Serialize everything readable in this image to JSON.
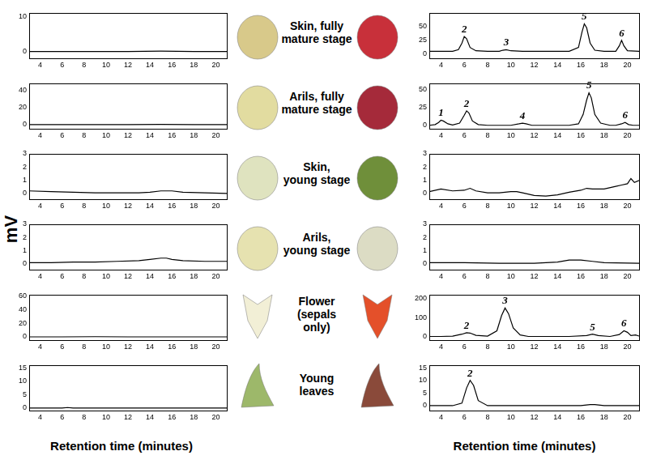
{
  "ylabel": "mV",
  "row_labels": [
    [
      "Skin, fully",
      "mature stage"
    ],
    [
      "Arils, fully",
      "mature stage"
    ],
    [
      "Skin,",
      "young stage"
    ],
    [
      "Arils,",
      "young stage"
    ],
    [
      "Flower",
      "(sepals",
      "only)"
    ],
    [
      "Young",
      "leaves"
    ]
  ],
  "chart_data": [
    {
      "type": "line",
      "color": "#000000",
      "xlim": [
        3,
        21
      ],
      "xticks": [
        4,
        6,
        8,
        10,
        12,
        14,
        16,
        18,
        20
      ],
      "ylim": [
        -2,
        11
      ],
      "yticks": [
        0,
        10
      ],
      "x": [
        3,
        6,
        9,
        12,
        15,
        18,
        21
      ],
      "values": [
        0,
        0,
        0,
        0,
        0.1,
        0,
        0
      ]
    },
    {
      "type": "line",
      "color": "#000000",
      "xlim": [
        3,
        21
      ],
      "xticks": [
        4,
        6,
        8,
        10,
        12,
        14,
        16,
        18,
        20
      ],
      "ylim": [
        -8,
        75
      ],
      "yticks": [
        0,
        25,
        50
      ],
      "x": [
        3,
        4,
        5,
        5.5,
        5.8,
        6.0,
        6.2,
        6.5,
        7,
        8,
        9,
        9.3,
        9.6,
        10,
        11,
        12,
        13,
        14,
        15,
        15.8,
        16.1,
        16.3,
        16.5,
        16.8,
        17.2,
        18,
        19,
        19.3,
        19.5,
        19.7,
        20,
        21
      ],
      "values": [
        5,
        5,
        5,
        8,
        20,
        32,
        28,
        12,
        6,
        5,
        5,
        7,
        8,
        6,
        5,
        5,
        5,
        5,
        5,
        12,
        40,
        55,
        48,
        20,
        7,
        5,
        5,
        15,
        25,
        15,
        6,
        5
      ],
      "annotations": [
        {
          "text": "2",
          "x": 6.0
        },
        {
          "text": "3",
          "x": 9.6
        },
        {
          "text": "5",
          "x": 16.3
        },
        {
          "text": "6",
          "x": 19.5
        }
      ]
    },
    {
      "type": "line",
      "color": "#000000",
      "xlim": [
        3,
        21
      ],
      "xticks": [
        4,
        6,
        8,
        10,
        12,
        14,
        16,
        18,
        20
      ],
      "ylim": [
        -5,
        48
      ],
      "yticks": [
        0,
        20,
        40
      ],
      "x": [
        3,
        6,
        9,
        12,
        15,
        18,
        21
      ],
      "values": [
        0,
        0,
        0,
        0,
        0.2,
        0,
        0
      ]
    },
    {
      "type": "line",
      "color": "#000000",
      "xlim": [
        3,
        21
      ],
      "xticks": [
        4,
        6,
        8,
        10,
        12,
        14,
        16,
        18,
        20
      ],
      "ylim": [
        -5,
        58
      ],
      "yticks": [
        0,
        25,
        50
      ],
      "x": [
        3,
        3.5,
        3.8,
        4,
        4.2,
        4.6,
        5,
        5.6,
        6,
        6.2,
        6.4,
        6.7,
        7.2,
        8,
        9,
        10,
        10.7,
        11,
        11.3,
        11.8,
        13,
        14,
        15,
        15.8,
        16.2,
        16.5,
        16.7,
        16.9,
        17.2,
        17.7,
        18.5,
        19,
        19.5,
        19.8,
        20.1,
        20.5,
        21
      ],
      "values": [
        0,
        1,
        4,
        7,
        6,
        2,
        0.5,
        3,
        14,
        20,
        17,
        6,
        1,
        0,
        0,
        0,
        2,
        3,
        2,
        0,
        0,
        0,
        0,
        2,
        15,
        35,
        45,
        38,
        15,
        3,
        0,
        0,
        2,
        4,
        1,
        0,
        0
      ],
      "annotations": [
        {
          "text": "1",
          "x": 4
        },
        {
          "text": "2",
          "x": 6.2
        },
        {
          "text": "4",
          "x": 11
        },
        {
          "text": "5",
          "x": 16.7
        },
        {
          "text": "6",
          "x": 19.8
        }
      ]
    },
    {
      "type": "line",
      "color": "#000000",
      "xlim": [
        3,
        21
      ],
      "xticks": [
        4,
        6,
        8,
        10,
        12,
        14,
        16,
        18,
        20
      ],
      "ylim": [
        -0.5,
        3
      ],
      "yticks": [
        0,
        1,
        2,
        3
      ],
      "x": [
        3,
        5,
        7,
        9,
        11,
        13,
        14,
        15,
        16,
        17,
        19,
        21
      ],
      "values": [
        0.15,
        0.1,
        0.05,
        0,
        0,
        0,
        0.05,
        0.15,
        0.15,
        0.05,
        0,
        -0.05
      ]
    },
    {
      "type": "line",
      "color": "#000000",
      "xlim": [
        3,
        21
      ],
      "xticks": [
        4,
        6,
        8,
        10,
        12,
        14,
        16,
        18,
        20
      ],
      "ylim": [
        -0.5,
        3
      ],
      "yticks": [
        0,
        1,
        2,
        3
      ],
      "x": [
        3,
        4,
        5,
        6,
        6.5,
        7,
        8,
        9,
        10,
        10.5,
        11,
        12,
        13,
        14,
        15,
        16,
        16.5,
        17,
        18,
        19,
        19.5,
        20,
        20.3,
        20.6,
        21
      ],
      "values": [
        0.1,
        0.3,
        0.15,
        0.2,
        0.35,
        0.15,
        0,
        0,
        0.1,
        0.1,
        0,
        -0.2,
        -0.25,
        -0.15,
        0.05,
        0.2,
        0.35,
        0.3,
        0.3,
        0.5,
        0.6,
        0.7,
        1.1,
        0.8,
        0.95
      ]
    },
    {
      "type": "line",
      "color": "#000000",
      "xlim": [
        3,
        21
      ],
      "xticks": [
        4,
        6,
        8,
        10,
        12,
        14,
        16,
        18,
        20
      ],
      "ylim": [
        -0.5,
        3
      ],
      "yticks": [
        0,
        1,
        2,
        3
      ],
      "x": [
        3,
        5,
        7,
        9,
        11,
        13,
        14,
        15,
        15.5,
        16,
        17,
        19,
        21
      ],
      "values": [
        0.05,
        0.05,
        0.1,
        0.1,
        0.15,
        0.2,
        0.3,
        0.4,
        0.4,
        0.3,
        0.2,
        0.15,
        0.15
      ]
    },
    {
      "type": "line",
      "color": "#000000",
      "xlim": [
        3,
        21
      ],
      "xticks": [
        4,
        6,
        8,
        10,
        12,
        14,
        16,
        18,
        20
      ],
      "ylim": [
        -0.5,
        3
      ],
      "yticks": [
        0,
        1,
        2,
        3
      ],
      "x": [
        3,
        6,
        9,
        12,
        14,
        15,
        16,
        17,
        18,
        21
      ],
      "values": [
        0.05,
        0.05,
        0,
        0,
        0.1,
        0.25,
        0.25,
        0.15,
        0.05,
        0
      ]
    },
    {
      "type": "line",
      "color": "#000000",
      "xlim": [
        3,
        21
      ],
      "xticks": [
        4,
        6,
        8,
        10,
        12,
        14,
        16,
        18,
        20
      ],
      "ylim": [
        -5,
        62
      ],
      "yticks": [
        0,
        20,
        40,
        60
      ],
      "x": [
        3,
        6,
        9,
        12,
        15,
        18,
        21
      ],
      "values": [
        0,
        0,
        0.3,
        0,
        0,
        0,
        0
      ]
    },
    {
      "type": "line",
      "color": "#000000",
      "xlim": [
        3,
        21
      ],
      "xticks": [
        4,
        6,
        8,
        10,
        12,
        14,
        16,
        18,
        20
      ],
      "ylim": [
        -20,
        220
      ],
      "yticks": [
        0,
        100,
        200
      ],
      "x": [
        3,
        4,
        5,
        5.8,
        6.2,
        6.5,
        7,
        8,
        8.8,
        9.2,
        9.5,
        9.8,
        10.2,
        10.8,
        11.5,
        13,
        15,
        16.5,
        17,
        17.5,
        18.5,
        19.3,
        19.7,
        20,
        20.3,
        20.7,
        21
      ],
      "values": [
        0,
        0,
        2,
        12,
        20,
        18,
        6,
        2,
        30,
        110,
        150,
        120,
        45,
        8,
        0,
        0,
        0,
        5,
        12,
        5,
        0,
        10,
        30,
        22,
        5,
        8,
        2
      ],
      "annotations": [
        {
          "text": "2",
          "x": 6.2
        },
        {
          "text": "3",
          "x": 9.5
        },
        {
          "text": "5",
          "x": 17
        },
        {
          "text": "6",
          "x": 19.7
        }
      ]
    },
    {
      "type": "line",
      "color": "#000000",
      "xlim": [
        3,
        21
      ],
      "xticks": [
        4,
        6,
        8,
        10,
        12,
        14,
        16,
        18,
        20
      ],
      "ylim": [
        -1,
        16
      ],
      "yticks": [
        0,
        5,
        10,
        15
      ],
      "x": [
        3,
        6,
        6.5,
        7,
        9,
        12,
        15,
        18,
        21
      ],
      "values": [
        0,
        0,
        0.2,
        0,
        0,
        0,
        0,
        0,
        0
      ],
      "xlabel": "Retention time (minutes)"
    },
    {
      "type": "line",
      "color": "#000000",
      "xlim": [
        3,
        21
      ],
      "xticks": [
        4,
        6,
        8,
        10,
        12,
        14,
        16,
        18,
        20
      ],
      "ylim": [
        -2,
        16
      ],
      "yticks": [
        0,
        5,
        10,
        15
      ],
      "x": [
        3,
        5,
        5.8,
        6.2,
        6.5,
        6.8,
        7.2,
        8,
        10,
        12,
        14,
        16,
        16.8,
        17.2,
        18,
        21
      ],
      "values": [
        0,
        0,
        1,
        7,
        10,
        8,
        2,
        0,
        0,
        0,
        0,
        0,
        0.4,
        0.4,
        0,
        0
      ],
      "annotations": [
        {
          "text": "2",
          "x": 6.5
        }
      ],
      "xlabel": "Retention time (minutes)"
    }
  ]
}
